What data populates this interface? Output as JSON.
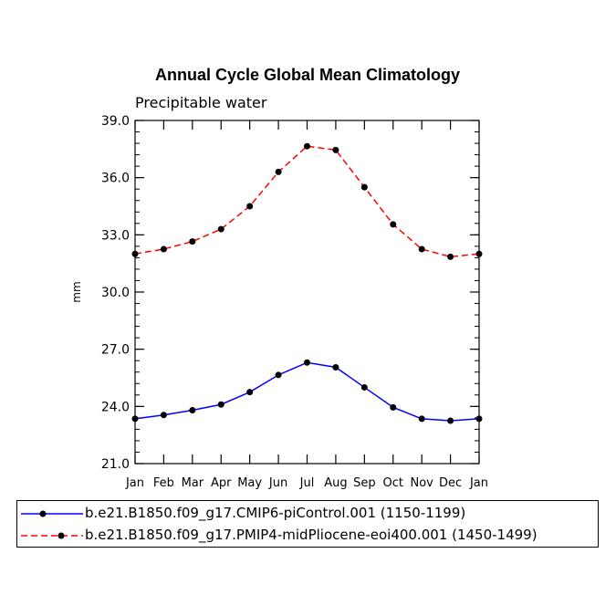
{
  "chart_data": {
    "type": "line",
    "title": "Annual Cycle Global Mean Climatology",
    "subtitle": "Precipitable water",
    "xlabel": "",
    "ylabel": "mm",
    "categories": [
      "Jan",
      "Feb",
      "Mar",
      "Apr",
      "May",
      "Jun",
      "Jul",
      "Aug",
      "Sep",
      "Oct",
      "Nov",
      "Dec",
      "Jan"
    ],
    "ylim": [
      21.0,
      39.0
    ],
    "yticks": [
      "21.0",
      "24.0",
      "27.0",
      "30.0",
      "33.0",
      "36.0",
      "39.0"
    ],
    "grid": false,
    "legend_position": "bottom",
    "series": [
      {
        "name": "b.e21.B1850.f09_g17.CMIP6-piControl.001 (1150-1199)",
        "color": "#0000ff",
        "line_style": "solid",
        "values": [
          23.35,
          23.55,
          23.8,
          24.1,
          24.75,
          25.65,
          26.3,
          26.05,
          25.0,
          23.95,
          23.35,
          23.25,
          23.35
        ]
      },
      {
        "name": "b.e21.B1850.f09_g17.PMIP4-midPliocene-eoi400.001 (1450-1499)",
        "color": "#ff0000",
        "line_style": "dashed",
        "values": [
          32.0,
          32.25,
          32.65,
          33.3,
          34.5,
          36.3,
          37.65,
          37.45,
          35.5,
          33.55,
          32.25,
          31.85,
          32.0
        ]
      }
    ]
  }
}
